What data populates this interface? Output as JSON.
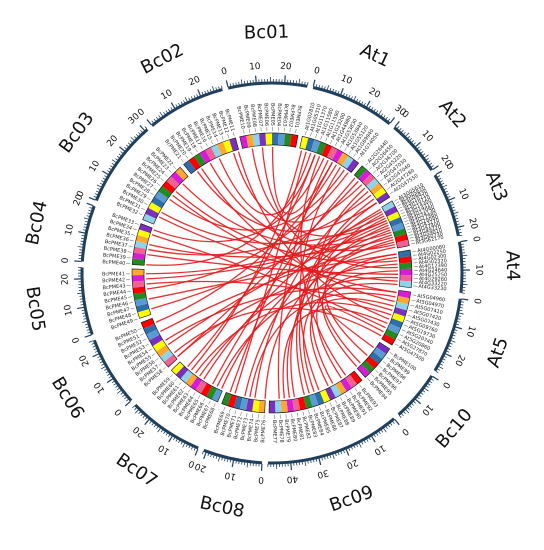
{
  "figure": {
    "colors": {
      "link": "#e31a1c",
      "axis": "#1f3f5b",
      "ideogram_edge": "#111111",
      "palette": [
        "#ffff00",
        "#ffa733",
        "#d81bd8",
        "#228b22",
        "#5b9bd5",
        "#7b2fbe",
        "#8fd3e8",
        "#f06292",
        "#ff0000",
        "#2f6fa8"
      ]
    },
    "chromosomes": [
      {
        "name": "At1",
        "length": 30
      },
      {
        "name": "At2",
        "length": 20
      },
      {
        "name": "At3",
        "length": 23
      },
      {
        "name": "At4",
        "length": 18
      },
      {
        "name": "At5",
        "length": 27
      },
      {
        "name": "Bc10",
        "length": 18
      },
      {
        "name": "Bc09",
        "length": 48
      },
      {
        "name": "Bc08",
        "length": 21
      },
      {
        "name": "Bc07",
        "length": 27
      },
      {
        "name": "Bc06",
        "length": 25
      },
      {
        "name": "Bc05",
        "length": 24
      },
      {
        "name": "Bc04",
        "length": 20
      },
      {
        "name": "Bc03",
        "length": 31
      },
      {
        "name": "Bc02",
        "length": 28
      },
      {
        "name": "Bc01",
        "length": 28
      }
    ],
    "gene_labels": [
      "At1G02810",
      "At1G05310",
      "At1G11370",
      "At1G11580",
      "At1G11590",
      "At1G23200",
      "At1G44980",
      "At1G53830",
      "At1G53840",
      "At1G55120",
      "At1G69940",
      "At1G74050",
      "At2G26440",
      "At2G26450",
      "At2G36700",
      "At2G45220",
      "At2G47030",
      "At2G47040",
      "At2G47280",
      "At2G47550",
      "At3G05610",
      "At3G05620",
      "At3G06830",
      "At3G10710",
      "At3G10720",
      "At3G14300",
      "At3G14310",
      "At3G17060",
      "At3G24130",
      "At3G27980",
      "At3G29090",
      "At3G43270",
      "At3G47400",
      "At3G49220",
      "At3G59010",
      "At3G60730",
      "At3G62170",
      "At4G00080",
      "At4G02250",
      "At4G02300",
      "At4G02320",
      "At4G12390",
      "At4G24640",
      "At4G25250",
      "At4G29260",
      "At4G33220",
      "At4G33230",
      "At5G04960",
      "At5G04970",
      "At5G07410",
      "At5G07420",
      "At5G07430",
      "At5G09760",
      "At5G19730",
      "At5G20740",
      "At5G20860",
      "At5G27870",
      "At5G47500",
      "BcPME01",
      "BcPME02",
      "BcPME03",
      "BcPME04",
      "BcPME05",
      "BcPME06",
      "BcPME07",
      "BcPME08",
      "BcPME09",
      "BcPME10",
      "BcPME11",
      "BcPME12",
      "BcPME13",
      "BcPME14",
      "BcPME15",
      "BcPME16",
      "BcPME17",
      "BcPME18",
      "BcPME19",
      "BcPME20",
      "BcPME21",
      "BcPME22",
      "BcPME23",
      "BcPME24",
      "BcPME25",
      "BcPME26",
      "BcPME27",
      "BcPME28",
      "BcPME29",
      "BcPME30",
      "BcPME31",
      "BcPME32",
      "BcPME33",
      "BcPME34",
      "BcPME35",
      "BcPME36",
      "BcPME37",
      "BcPME38",
      "BcPME39",
      "BcPME40",
      "BcPME41",
      "BcPME42",
      "BcPME43",
      "BcPME44",
      "BcPME45",
      "BcPME46",
      "BcPME47",
      "BcPME48",
      "BcPME49",
      "BcPME50",
      "BcPME51",
      "BcPME52",
      "BcPME53",
      "BcPME54",
      "BcPME55",
      "BcPME56",
      "BcPME57",
      "BcPME58",
      "BcPME59",
      "BcPME60",
      "BcPME61",
      "BcPME62",
      "BcPME63",
      "BcPME64",
      "BcPME65",
      "BcPME66",
      "BcPME67",
      "BcPME68",
      "BcPME69",
      "BcPME70",
      "BcPME71",
      "BcPME72",
      "BcPME73",
      "BcPME74",
      "BcPME75",
      "BcPME76",
      "BcPME77",
      "BcPME78",
      "BcPME79",
      "BcPME80",
      "BcPME81",
      "BcPME82",
      "BcPME83",
      "BcPME84",
      "BcPME85",
      "BcPME86",
      "BcPME87",
      "BcPME88",
      "BcPME89",
      "BcPME90",
      "BcPME91",
      "BcPME92",
      "BcPME93",
      "BcPME94",
      "BcPME95",
      "BcPME96",
      "BcPME97",
      "BcPME98",
      "BcPME99",
      "BcPME100"
    ],
    "links": [
      [
        "At1G02810",
        "BcPME61"
      ],
      [
        "At1G05310",
        "BcPME70"
      ],
      [
        "At1G11370",
        "BcPME40"
      ],
      [
        "At1G11580",
        "BcPME15"
      ],
      [
        "At1G11590",
        "BcPME92"
      ],
      [
        "At1G23200",
        "BcPME33"
      ],
      [
        "At1G44980",
        "BcPME78"
      ],
      [
        "At1G53830",
        "BcPME05"
      ],
      [
        "At1G53840",
        "BcPME50"
      ],
      [
        "At1G55120",
        "BcPME86"
      ],
      [
        "At1G69940",
        "BcPME27"
      ],
      [
        "At1G74050",
        "BcPME44"
      ],
      [
        "At2G26440",
        "BcPME66"
      ],
      [
        "At2G26450",
        "BcPME58"
      ],
      [
        "At2G36700",
        "BcPME12"
      ],
      [
        "At2G45220",
        "BcPME95"
      ],
      [
        "At2G47030",
        "BcPME74"
      ],
      [
        "At2G47040",
        "BcPME37"
      ],
      [
        "At2G47280",
        "BcPME83"
      ],
      [
        "At2G47550",
        "BcPME20"
      ],
      [
        "At3G05610",
        "BcPME64"
      ],
      [
        "At3G05620",
        "BcPME48"
      ],
      [
        "At3G06830",
        "BcPME89"
      ],
      [
        "At3G10710",
        "BcPME30"
      ],
      [
        "At3G10720",
        "BcPME72"
      ],
      [
        "At3G14300",
        "BcPME09"
      ],
      [
        "At3G14310",
        "BcPME55"
      ],
      [
        "At3G17060",
        "BcPME81"
      ],
      [
        "At3G24130",
        "BcPME42"
      ],
      [
        "At3G27980",
        "BcPME68"
      ],
      [
        "At3G29090",
        "BcPME23"
      ],
      [
        "At3G43270",
        "BcPME97"
      ],
      [
        "At3G47400",
        "BcPME36"
      ],
      [
        "At3G49220",
        "BcPME76"
      ],
      [
        "At3G59010",
        "BcPME52"
      ],
      [
        "At3G60730",
        "BcPME17"
      ],
      [
        "At3G62170",
        "BcPME63"
      ],
      [
        "At4G00080",
        "BcPME46"
      ],
      [
        "At4G02250",
        "BcPME80"
      ],
      [
        "At4G02300",
        "BcPME25"
      ],
      [
        "At4G02320",
        "BcPME58"
      ],
      [
        "At4G12390",
        "BcPME07"
      ],
      [
        "At4G24640",
        "BcPME91"
      ],
      [
        "At4G25250",
        "BcPME38"
      ],
      [
        "At4G29260",
        "BcPME67"
      ],
      [
        "At4G33220",
        "BcPME31"
      ],
      [
        "At4G33230",
        "BcPME85"
      ],
      [
        "At5G04960",
        "BcPME54"
      ],
      [
        "At5G04970",
        "BcPME73"
      ],
      [
        "At5G07410",
        "BcPME19"
      ],
      [
        "At5G07420",
        "BcPME88"
      ],
      [
        "At5G07430",
        "BcPME43"
      ],
      [
        "At5G09760",
        "BcPME62"
      ],
      [
        "At5G19730",
        "BcPME11"
      ],
      [
        "At5G20740",
        "BcPME79"
      ],
      [
        "At5G20860",
        "BcPME34"
      ],
      [
        "At5G27870",
        "BcPME99"
      ],
      [
        "At5G47500",
        "BcPME57"
      ],
      [
        "At1G53830",
        "BcPME69"
      ],
      [
        "At2G47550",
        "BcPME84"
      ],
      [
        "At3G14300",
        "BcPME41"
      ],
      [
        "At4G00080",
        "BcPME94"
      ],
      [
        "At5G04960",
        "BcPME26"
      ],
      [
        "At1G11580",
        "BcPME60"
      ]
    ]
  }
}
